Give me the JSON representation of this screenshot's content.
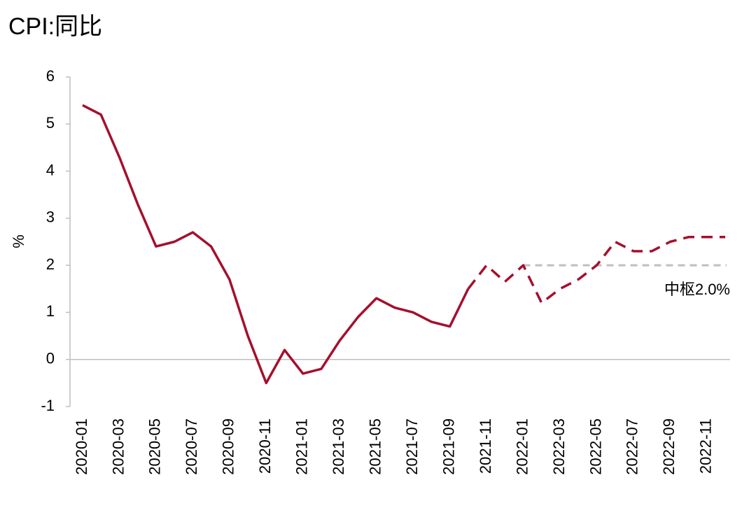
{
  "chart_data": {
    "type": "line",
    "title": "CPI:同比",
    "y_label": "%",
    "categories": [
      "2020-01",
      null,
      "2020-03",
      null,
      "2020-05",
      null,
      "2020-07",
      null,
      "2020-09",
      null,
      "2020-11",
      null,
      "2021-01",
      null,
      "2021-03",
      null,
      "2021-05",
      null,
      "2021-07",
      null,
      "2021-09",
      null,
      "2021-11",
      null,
      "2022-01",
      null,
      "2022-03",
      null,
      "2022-05",
      null,
      "2022-07",
      null,
      "2022-09",
      null,
      "2022-11",
      null
    ],
    "series": [
      {
        "color": "#a50f2d",
        "dash": false,
        "values": [
          5.4,
          5.2,
          4.3,
          3.3,
          2.4,
          2.5,
          2.7,
          2.4,
          1.7,
          0.5,
          -0.5,
          0.2,
          -0.3,
          -0.2,
          0.4,
          0.9,
          1.3,
          1.1,
          1.0,
          0.8,
          0.7,
          1.5,
          null,
          null,
          null,
          null,
          null,
          null,
          null,
          null,
          null,
          null,
          null,
          null,
          null,
          null
        ]
      },
      {
        "color": "#a50f2d",
        "dash": true,
        "values": [
          null,
          null,
          null,
          null,
          null,
          null,
          null,
          null,
          null,
          null,
          null,
          null,
          null,
          null,
          null,
          null,
          null,
          null,
          null,
          null,
          null,
          1.5,
          2.0,
          1.65,
          2.0,
          1.2,
          1.5,
          1.7,
          2.0,
          2.5,
          2.3,
          2.3,
          2.5,
          2.6,
          2.6,
          2.6
        ]
      }
    ],
    "reference_line": {
      "value": 2.0,
      "label": "中枢2.0%",
      "start": "2022-01",
      "color": "#bfbfbf"
    },
    "ylim": [
      -1,
      6
    ],
    "yticks": [
      -1,
      0,
      1,
      2,
      3,
      4,
      5,
      6
    ],
    "grid": false
  }
}
